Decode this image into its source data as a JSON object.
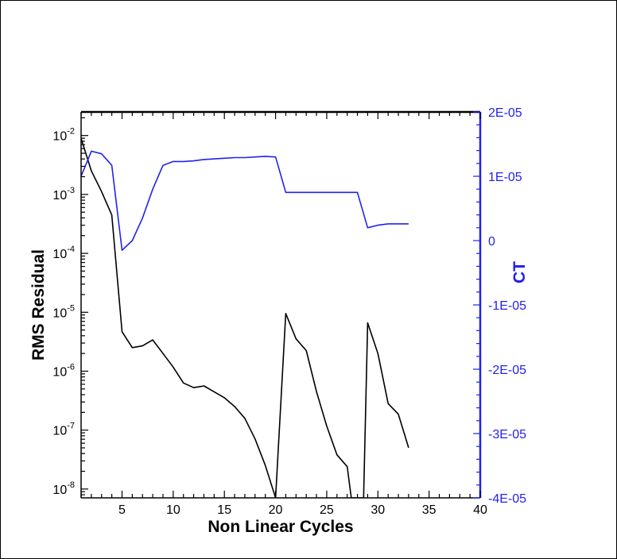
{
  "chart_data": {
    "type": "line",
    "xlabel": "Non Linear Cycles",
    "ylabel_left": "RMS Residual",
    "ylabel_right": "CT",
    "xlim": [
      1,
      40
    ],
    "x_ticks": [
      5,
      10,
      15,
      20,
      25,
      30,
      35,
      40
    ],
    "left_axis": {
      "scale": "log",
      "ylim_exponent": [
        -8.15,
        -1.6
      ],
      "ticks": [
        {
          "exponent": -2,
          "base": "10",
          "sup": "-2"
        },
        {
          "exponent": -3,
          "base": "10",
          "sup": "-3"
        },
        {
          "exponent": -4,
          "base": "10",
          "sup": "-4"
        },
        {
          "exponent": -5,
          "base": "10",
          "sup": "-5"
        },
        {
          "exponent": -6,
          "base": "10",
          "sup": "-6"
        },
        {
          "exponent": -7,
          "base": "10",
          "sup": "-7"
        },
        {
          "exponent": -8,
          "base": "10",
          "sup": "-8"
        }
      ]
    },
    "right_axis": {
      "scale": "linear",
      "ylim": [
        -4e-05,
        2e-05
      ],
      "ticks": [
        {
          "value": 2e-05,
          "label": "2E-05"
        },
        {
          "value": 1e-05,
          "label": "1E-05"
        },
        {
          "value": 0,
          "label": "0"
        },
        {
          "value": -1e-05,
          "label": "-1E-05"
        },
        {
          "value": -2e-05,
          "label": "-2E-05"
        },
        {
          "value": -3e-05,
          "label": "-3E-05"
        },
        {
          "value": -4e-05,
          "label": "-4E-05"
        }
      ]
    },
    "series": [
      {
        "name": "RMS Residual",
        "axis": "left",
        "color": "#000000",
        "x": [
          1,
          2,
          3,
          4,
          5,
          6,
          7,
          8,
          9,
          10,
          11,
          12,
          13,
          14,
          15,
          16,
          17,
          18,
          19,
          20,
          21,
          22,
          23,
          24,
          25,
          26,
          27,
          27.4,
          28,
          28.6,
          29,
          30,
          31,
          32,
          33
        ],
        "log10_y": [
          -2.05,
          -2.6,
          -2.95,
          -3.35,
          -5.33,
          -5.6,
          -5.57,
          -5.47,
          -5.7,
          -5.93,
          -6.2,
          -6.28,
          -6.25,
          -6.35,
          -6.45,
          -6.6,
          -6.8,
          -7.15,
          -7.6,
          -8.15,
          -5.02,
          -5.45,
          -5.65,
          -6.35,
          -6.93,
          -7.42,
          -7.62,
          -8.15,
          -8.15,
          -8.15,
          -5.18,
          -5.7,
          -6.55,
          -6.73,
          -7.3
        ]
      },
      {
        "name": "CT",
        "axis": "right",
        "color": "#2222ee",
        "x": [
          1,
          2,
          3,
          4,
          5,
          6,
          7,
          8,
          9,
          10,
          11,
          12,
          13,
          14,
          15,
          16,
          17,
          18,
          19,
          20,
          21,
          22,
          23,
          24,
          25,
          26,
          27,
          28,
          29,
          30,
          31,
          32,
          33
        ],
        "y": [
          1e-05,
          1.39e-05,
          1.35e-05,
          1.17e-05,
          -1.5e-06,
          0,
          3.5e-06,
          8e-06,
          1.17e-05,
          1.23e-05,
          1.23e-05,
          1.24e-05,
          1.26e-05,
          1.27e-05,
          1.28e-05,
          1.29e-05,
          1.29e-05,
          1.3e-05,
          1.31e-05,
          1.3e-05,
          7.5e-06,
          7.5e-06,
          7.5e-06,
          7.5e-06,
          7.5e-06,
          7.5e-06,
          7.5e-06,
          7.5e-06,
          2e-06,
          2.4e-06,
          2.6e-06,
          2.6e-06,
          2.6e-06
        ]
      }
    ]
  }
}
